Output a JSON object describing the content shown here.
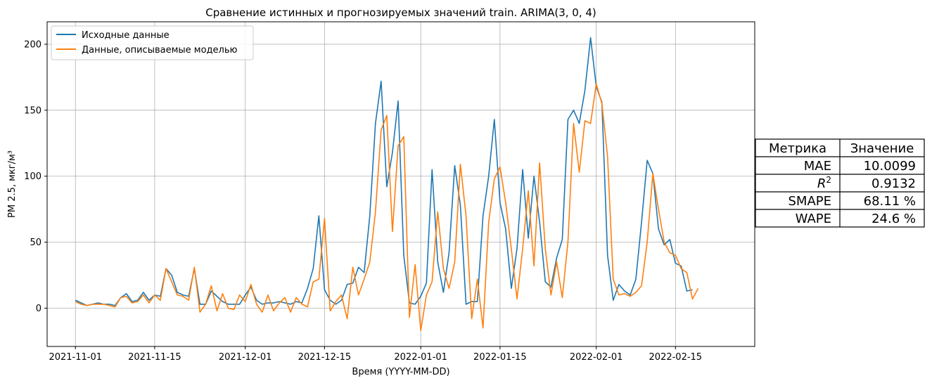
{
  "chart_data": {
    "type": "line",
    "title": "Сравнение истинных и прогнозируемых значений train. ARIMA(3, 0, 4)",
    "xlabel": "Время (YYYY-MM-DD)",
    "ylabel": "PM 2.5, мкг/м³",
    "x_start": "2021-11-01",
    "x_end": "2022-02-19",
    "xlim": [
      "2021-10-27",
      "2022-03-01"
    ],
    "ylim": [
      -29,
      217
    ],
    "x_ticks": [
      "2021-11-01",
      "2021-11-15",
      "2021-12-01",
      "2021-12-15",
      "2022-01-01",
      "2022-01-15",
      "2022-02-01",
      "2022-02-15"
    ],
    "y_ticks": [
      0,
      50,
      100,
      150,
      200
    ],
    "grid": true,
    "legend_position": "upper-left",
    "series": [
      {
        "name": "Исходные данные",
        "color": "#1f77b4",
        "values": [
          6,
          4,
          2,
          3,
          4,
          3,
          3,
          2,
          8,
          11,
          5,
          6,
          12,
          6,
          10,
          9,
          30,
          25,
          12,
          10,
          9,
          30,
          3,
          3,
          13,
          9,
          5,
          3,
          3,
          3,
          10,
          16,
          6,
          3,
          4,
          4,
          5,
          4,
          3,
          5,
          4,
          15,
          30,
          70,
          14,
          6,
          3,
          6,
          18,
          19,
          31,
          27,
          70,
          140,
          172,
          92,
          118,
          157,
          40,
          4,
          3,
          9,
          19,
          105,
          35,
          12,
          42,
          108,
          78,
          3,
          5,
          5,
          70,
          100,
          143,
          80,
          60,
          15,
          45,
          105,
          53,
          100,
          65,
          20,
          16,
          38,
          52,
          143,
          150,
          140,
          165,
          205,
          168,
          156,
          40,
          6,
          18,
          13,
          10,
          22,
          65,
          112,
          102,
          60,
          48,
          52,
          34,
          32,
          13,
          14
        ]
      },
      {
        "name": "Данные, описываемые моделью",
        "color": "#ff7f0e",
        "values": [
          5,
          3,
          2,
          3,
          3,
          3,
          2,
          1,
          8,
          9,
          4,
          5,
          10,
          4,
          10,
          6,
          30,
          20,
          10,
          9,
          6,
          31,
          -3,
          3,
          17,
          -2,
          11,
          0,
          -1,
          10,
          5,
          18,
          3,
          -3,
          10,
          -2,
          4,
          8,
          -3,
          8,
          3,
          1,
          20,
          22,
          68,
          -2,
          5,
          10,
          -8,
          31,
          10,
          22,
          35,
          73,
          135,
          146,
          58,
          123,
          130,
          -7,
          33,
          -17,
          10,
          20,
          73,
          30,
          15,
          35,
          109,
          70,
          -8,
          22,
          -15,
          65,
          98,
          107,
          80,
          45,
          7,
          45,
          89,
          32,
          110,
          45,
          10,
          35,
          8,
          50,
          140,
          103,
          142,
          140,
          170,
          155,
          115,
          22,
          10,
          11,
          9,
          12,
          17,
          50,
          102,
          75,
          50,
          42,
          40,
          30,
          27,
          7,
          15
        ]
      }
    ],
    "metrics_table": {
      "headers": [
        "Метрика",
        "Значение"
      ],
      "rows": [
        {
          "metric": "MAE",
          "value": "10.0099"
        },
        {
          "metric": "R2",
          "value": "0.9132"
        },
        {
          "metric": "SMAPE",
          "value": "68.11 %"
        },
        {
          "metric": "WAPE",
          "value": "24.6 %"
        }
      ]
    }
  }
}
